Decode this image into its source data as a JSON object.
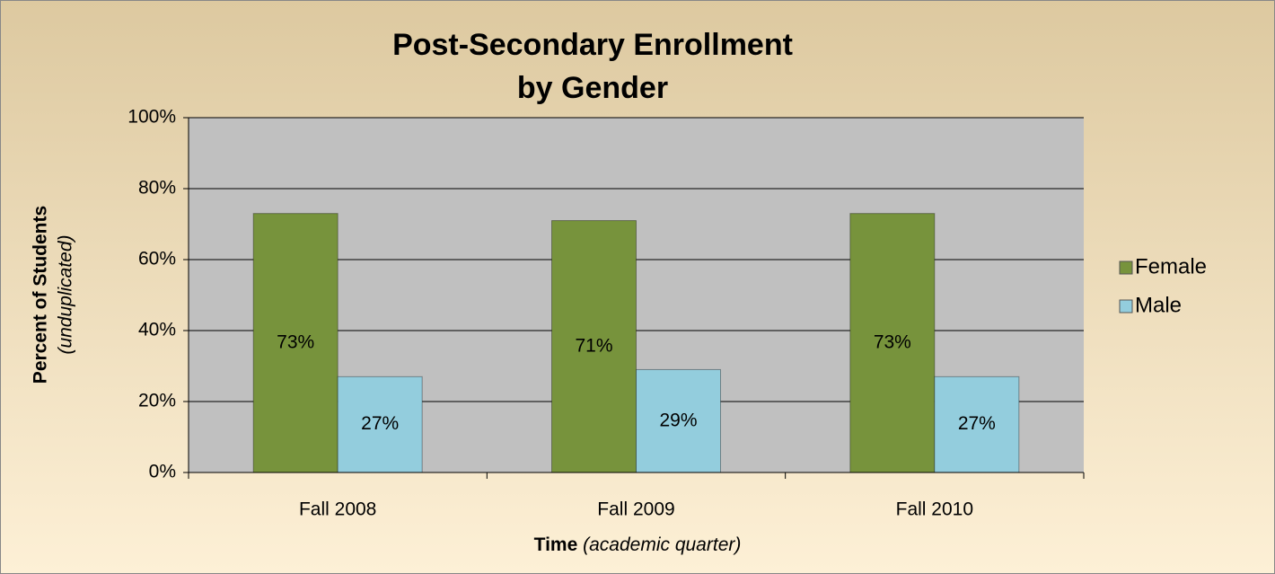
{
  "chart_data": {
    "type": "bar",
    "title": [
      "Post-Secondary Enrollment",
      "by Gender"
    ],
    "ylabel": [
      "Percent of Students",
      "(unduplicated)"
    ],
    "xlabel": [
      "Time",
      "(academic quarter)"
    ],
    "categories": [
      "Fall 2008",
      "Fall 2009",
      "Fall 2010"
    ],
    "series": [
      {
        "name": "Female",
        "color": "#77933c",
        "values": [
          73,
          71,
          73
        ],
        "value_labels": [
          "73%",
          "71%",
          "73%"
        ]
      },
      {
        "name": "Male",
        "color": "#93cddd",
        "values": [
          27,
          29,
          27
        ],
        "value_labels": [
          "27%",
          "29%",
          "27%"
        ]
      }
    ],
    "ylim": [
      0,
      100
    ],
    "yticks": [
      {
        "value": 0,
        "label": "0%"
      },
      {
        "value": 20,
        "label": "20%"
      },
      {
        "value": 40,
        "label": "40%"
      },
      {
        "value": 60,
        "label": "60%"
      },
      {
        "value": 80,
        "label": "80%"
      },
      {
        "value": 100,
        "label": "100%"
      }
    ],
    "grid": true,
    "legend": "right"
  }
}
